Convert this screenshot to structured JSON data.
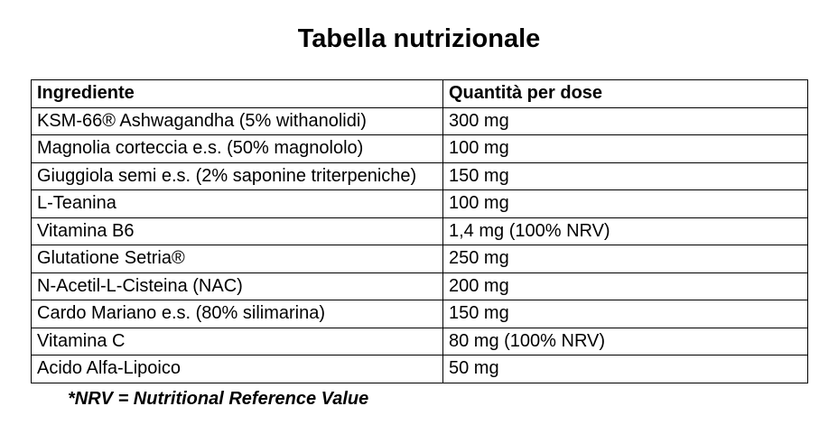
{
  "title": "Tabella nutrizionale",
  "table": {
    "headers": [
      "Ingrediente",
      "Quantità per dose"
    ],
    "rows": [
      {
        "ingredient": "KSM-66® Ashwagandha (5% withanolidi)",
        "quantity": "300 mg"
      },
      {
        "ingredient": "Magnolia corteccia e.s. (50% magnololo)",
        "quantity": "100 mg"
      },
      {
        "ingredient": "Giuggiola semi e.s. (2% saponine triterpeniche)",
        "quantity": "150 mg"
      },
      {
        "ingredient": "L-Teanina",
        "quantity": "100 mg"
      },
      {
        "ingredient": "Vitamina B6",
        "quantity": "1,4 mg (100% NRV)"
      },
      {
        "ingredient": "Glutatione Setria®",
        "quantity": "250 mg"
      },
      {
        "ingredient": "N-Acetil-L-Cisteina (NAC)",
        "quantity": "200 mg"
      },
      {
        "ingredient": "Cardo Mariano e.s. (80% silimarina)",
        "quantity": "150 mg"
      },
      {
        "ingredient": "Vitamina C",
        "quantity": "80 mg (100% NRV)"
      },
      {
        "ingredient": "Acido Alfa-Lipoico",
        "quantity": "50 mg"
      }
    ]
  },
  "footnote": "*NRV = Nutritional Reference Value",
  "colors": {
    "text": "#000000",
    "background": "#ffffff",
    "border": "#000000"
  }
}
